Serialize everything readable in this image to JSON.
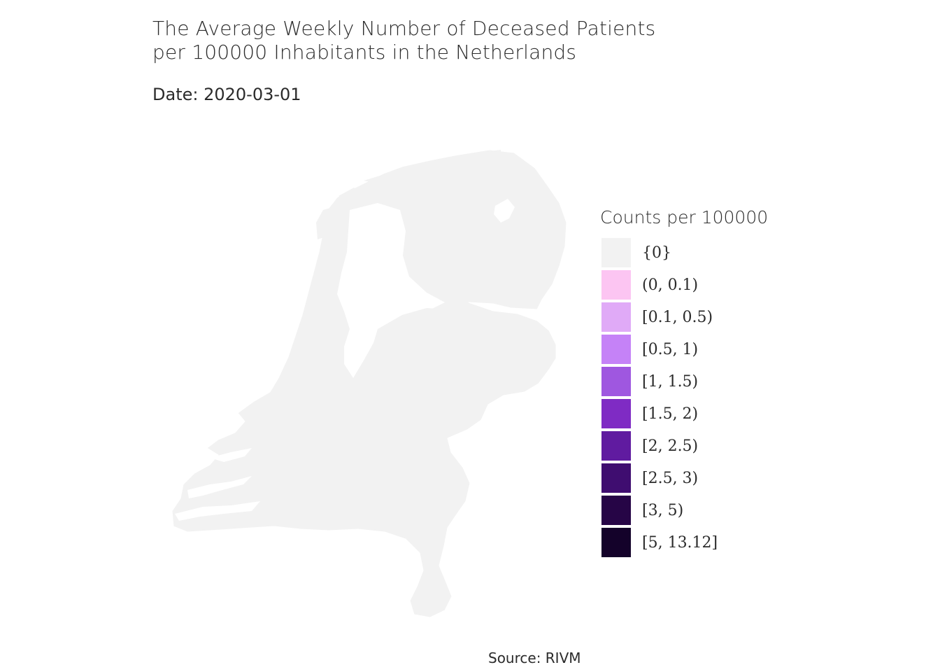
{
  "title": {
    "line1": "The Average Weekly Number of Deceased Patients",
    "line2": "per 100000 Inhabitants in the Netherlands"
  },
  "subtitle": "Date: 2020-03-01",
  "map": {
    "country": "Netherlands",
    "fill_color": "#f2f2f2",
    "current_bin": "{0}"
  },
  "legend": {
    "title": "Counts per 100000",
    "items": [
      {
        "label": "{0}",
        "color": "#f2f2f2"
      },
      {
        "label": "(0, 0.1)",
        "color": "#fcc5f2"
      },
      {
        "label": "[0.1, 0.5)",
        "color": "#e0aaf7"
      },
      {
        "label": "[0.5, 1)",
        "color": "#c582f7"
      },
      {
        "label": "[1, 1.5)",
        "color": "#9f57e0"
      },
      {
        "label": "[1.5, 2)",
        "color": "#7f2bc4"
      },
      {
        "label": "[2, 2.5)",
        "color": "#601ba0"
      },
      {
        "label": "[2.5, 3)",
        "color": "#3f0d70"
      },
      {
        "label": "[3, 5)",
        "color": "#260546"
      },
      {
        "label": "[5, 13.12]",
        "color": "#14022a"
      }
    ]
  },
  "source": "Source: RIVM"
}
